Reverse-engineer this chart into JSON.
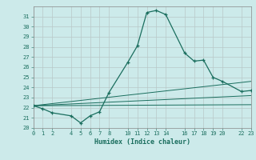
{
  "xlabel": "Humidex (Indice chaleur)",
  "bg_color": "#cceaea",
  "grid_color": "#b8c8c8",
  "line_color": "#1a6e5e",
  "xlim": [
    0,
    23
  ],
  "ylim": [
    20,
    32
  ],
  "yticks": [
    20,
    21,
    22,
    23,
    24,
    25,
    26,
    27,
    28,
    29,
    30,
    31
  ],
  "xticks": [
    0,
    1,
    2,
    4,
    5,
    6,
    7,
    8,
    10,
    11,
    12,
    13,
    14,
    16,
    17,
    18,
    19,
    20,
    22,
    23
  ],
  "line1_x": [
    0,
    1,
    2,
    4,
    5,
    6,
    7,
    8,
    10,
    11,
    12,
    13,
    14,
    16,
    17,
    18,
    19,
    20,
    22,
    23
  ],
  "line1_y": [
    22.2,
    21.9,
    21.5,
    21.2,
    20.5,
    21.2,
    21.6,
    23.5,
    26.5,
    28.1,
    31.4,
    31.6,
    31.2,
    27.4,
    26.6,
    26.7,
    25.0,
    24.6,
    23.6,
    23.7
  ],
  "line2_x": [
    0,
    23
  ],
  "line2_y": [
    22.2,
    24.6
  ],
  "line3_x": [
    0,
    23
  ],
  "line3_y": [
    22.2,
    23.2
  ],
  "line4_x": [
    0,
    23
  ],
  "line4_y": [
    22.2,
    22.3
  ]
}
